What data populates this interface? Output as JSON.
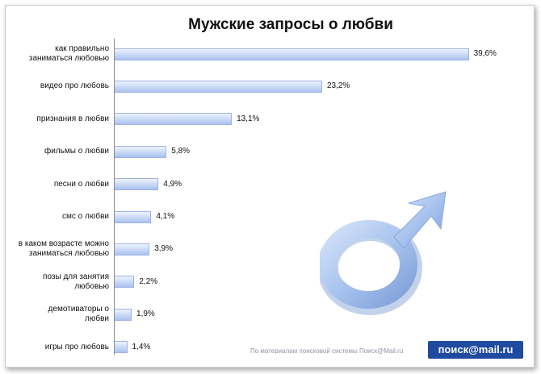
{
  "chart_data": {
    "type": "bar",
    "orientation": "horizontal",
    "title": "Мужские запросы  о любви",
    "categories": [
      [
        "как правильно",
        "заниматься любовью"
      ],
      [
        "видео про любовь"
      ],
      [
        "признания в любви"
      ],
      [
        "фильмы о любви"
      ],
      [
        "песни о любви"
      ],
      [
        "смс о любви"
      ],
      [
        "в каком возрасте можно",
        "заниматься любовью"
      ],
      [
        "позы для занятия",
        "любовью"
      ],
      [
        "демотиваторы о",
        "любви"
      ],
      [
        "игры про любовь"
      ]
    ],
    "values": [
      39.6,
      23.2,
      13.1,
      5.8,
      4.9,
      4.1,
      3.9,
      2.2,
      1.9,
      1.4
    ],
    "value_labels": [
      "39,6%",
      "23,2%",
      "13,1%",
      "5,8%",
      "4,9%",
      "4,1%",
      "3,9%",
      "2,2%",
      "1,9%",
      "1,4%"
    ],
    "xlim": [
      0,
      40
    ],
    "grid": false,
    "legend": "none",
    "bar_color": "#bcd0f3"
  },
  "footer": {
    "source": "По материалам поисковой системы Поиск@Mail.ru",
    "logo": "поиск@mail.ru"
  },
  "decoration": {
    "icon": "male-symbol-icon",
    "color": "#9fbbe8"
  }
}
